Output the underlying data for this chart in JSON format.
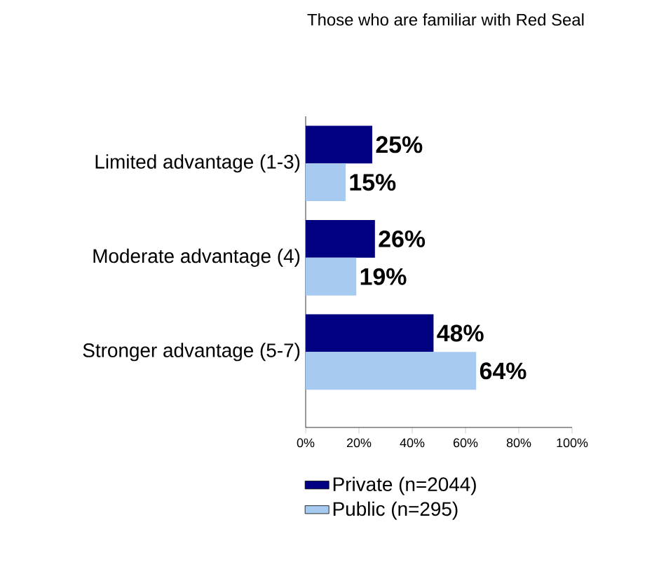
{
  "chart_data": {
    "type": "bar",
    "orientation": "horizontal",
    "title": "Those who are familiar with Red Seal",
    "categories": [
      "Limited advantage (1-3)",
      "Moderate advantage (4)",
      "Stronger advantage (5-7)"
    ],
    "series": [
      {
        "name": "Private (n=2044)",
        "color": "#000080",
        "values": [
          25,
          26,
          48
        ],
        "value_labels": [
          "25%",
          "26%",
          "48%"
        ]
      },
      {
        "name": "Public (n=295)",
        "color": "#a6caf0",
        "values": [
          15,
          19,
          64
        ],
        "value_labels": [
          "15%",
          "19%",
          "64%"
        ]
      }
    ],
    "xlim": [
      0,
      100
    ],
    "xticks": [
      {
        "value": 0,
        "label": "0%"
      },
      {
        "value": 20,
        "label": "20%"
      },
      {
        "value": 40,
        "label": "40%"
      },
      {
        "value": 60,
        "label": "60%"
      },
      {
        "value": 80,
        "label": "80%"
      },
      {
        "value": 100,
        "label": "100%"
      }
    ],
    "grid": false,
    "legend": "bottom"
  }
}
